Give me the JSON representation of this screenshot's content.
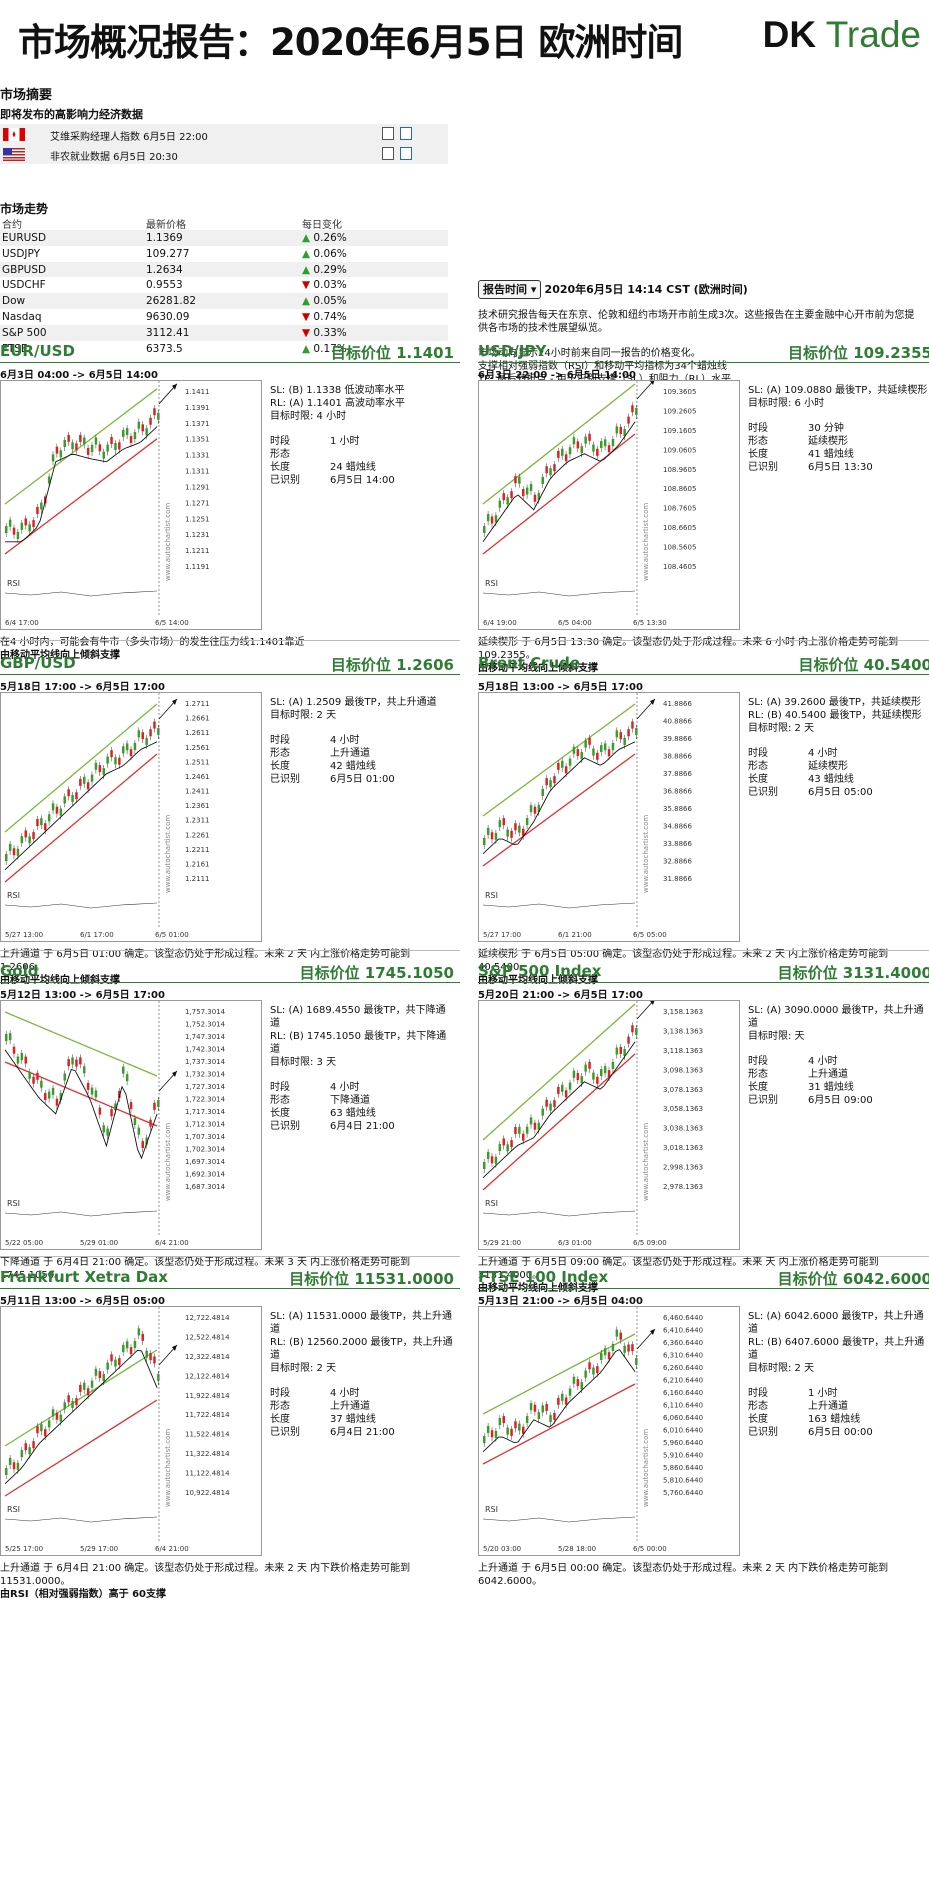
{
  "header": {
    "title": "市场概况报告：2020年6月5日 欧洲时间",
    "logo_left": "DK",
    "logo_right": "Trade"
  },
  "summary": {
    "heading": "市场摘要",
    "events_heading": "即将发布的高影响力经济数据",
    "events": [
      {
        "flag": "canada",
        "text": "艾维采购经理人指数 6月5日 22:00"
      },
      {
        "flag": "usa",
        "text": "非农就业数据 6月5日 20:30"
      }
    ],
    "trend_heading": "市场走势",
    "table_headers": [
      "合约",
      "最新价格",
      "每日变化"
    ],
    "rows": [
      {
        "name": "EURUSD",
        "price": "1.1369",
        "change": "0.26%",
        "dir": "up"
      },
      {
        "name": "USDJPY",
        "price": "109.277",
        "change": "0.06%",
        "dir": "up"
      },
      {
        "name": "GBPUSD",
        "price": "1.2634",
        "change": "0.29%",
        "dir": "up"
      },
      {
        "name": "USDCHF",
        "price": "0.9553",
        "change": "0.03%",
        "dir": "down"
      },
      {
        "name": "Dow",
        "price": "26281.82",
        "change": "0.05%",
        "dir": "up"
      },
      {
        "name": "Nasdaq",
        "price": "9630.09",
        "change": "0.74%",
        "dir": "down"
      },
      {
        "name": "S&P 500",
        "price": "3112.41",
        "change": "0.33%",
        "dir": "down"
      },
      {
        "name": "FTSE",
        "price": "6373.5",
        "change": "0.17%",
        "dir": "up"
      }
    ]
  },
  "report": {
    "button": "报告时间",
    "time": "2020年6月5日 14:14 CST (欧洲时间)",
    "p1": "技术研究报告每天在东京、伦敦和纽约市场开市前生成3次。这些报告在主要金融中心开市前为您提供各市场的技术性展望纵览。",
    "p2": "市场动向显示24小时前来自同一报告的价格变化。",
    "p3": "支撑相对强弱指数（RSI）和移动平均指标为34个蜡烛线",
    "p4": "TP: 最后转折点 - 用于识别支撑（SL）和阻力（RL）水平"
  },
  "labels": {
    "period": "时段",
    "pattern": "形态",
    "length": "长度",
    "identified": "已识别",
    "rsi": "RSI",
    "watermark": "www.autochartist.com"
  },
  "panels": [
    {
      "name": "EUR/USD",
      "target": "目标价位 1.1401",
      "range": "6月3日 04:00 -> 6月5日 14:00",
      "sl": "SL: (B) 1.1338 低波动率水平",
      "rl": "RL: (A) 1.1401 高波动率水平",
      "limit": "目标时限: 4 小时",
      "period": "1 小时",
      "pattern": "",
      "length": "24 蜡烛线",
      "identified": "6月5日 14:00",
      "desc": "在4 小时内，可能会有牛市（多头市场）的发生往压力线1.1401靠近",
      "desc2": "由移动平均线向上倾斜支撑",
      "yticks": [
        "1.1411",
        "1.1391",
        "1.1371",
        "1.1351",
        "1.1331",
        "1.1311",
        "1.1291",
        "1.1271",
        "1.1251",
        "1.1231",
        "1.1211",
        "1.1191"
      ],
      "xticks": [
        "6/4 17:00",
        "6/5 14:00"
      ]
    },
    {
      "name": "USD/JPY",
      "target": "目标价位 109.2355",
      "range": "6月3日 22:00 -> 6月5日 14:00",
      "sl": "SL: (A) 109.0880 最後TP，共延续楔形",
      "rl": "",
      "limit": "目标时限: 6 小时",
      "period": "30 分钟",
      "pattern": "延续楔形",
      "length": "41 蜡烛线",
      "identified": "6月5日 13:30",
      "desc": "延续楔形 于 6月5日 13:30 确定。该型态仍处于形成过程。未来 6 小时 内上涨价格走势可能到 109.2355。",
      "desc2": "由移动平均线向上倾斜支撑",
      "yticks": [
        "109.3605",
        "109.2605",
        "109.1605",
        "109.0605",
        "108.9605",
        "108.8605",
        "108.7605",
        "108.6605",
        "108.5605",
        "108.4605"
      ],
      "xticks": [
        "6/4 19:00",
        "6/5 04:00",
        "6/5 13:30"
      ]
    },
    {
      "name": "GBP/USD",
      "target": "目标价位 1.2606",
      "range": "5月18日 17:00 -> 6月5日 17:00",
      "sl": "SL: (A) 1.2509 最後TP，共上升通道",
      "rl": "",
      "limit": "目标时限: 2 天",
      "period": "4 小时",
      "pattern": "上升通道",
      "length": "42 蜡烛线",
      "identified": "6月5日 01:00",
      "desc": "上升通道 于 6月5日 01:00 确定。该型态仍处于形成过程。未来 2 天 内上涨价格走势可能到 1.2606。",
      "desc2": "由移动平均线向上倾斜支撑",
      "yticks": [
        "1.2711",
        "1.2661",
        "1.2611",
        "1.2561",
        "1.2511",
        "1.2461",
        "1.2411",
        "1.2361",
        "1.2311",
        "1.2261",
        "1.2211",
        "1.2161",
        "1.2111"
      ],
      "xticks": [
        "5/27 13:00",
        "6/1 17:00",
        "6/5 01:00"
      ]
    },
    {
      "name": "Brent Crude",
      "target": "目标价位 40.5400",
      "range": "5月18日 13:00 -> 6月5日 17:00",
      "sl": "SL: (A) 39.2600 最後TP，共延续楔形",
      "rl": "RL: (B) 40.5400 最後TP，共延续楔形",
      "limit": "目标时限: 2 天",
      "period": "4 小时",
      "pattern": "延续楔形",
      "length": "43 蜡烛线",
      "identified": "6月5日 05:00",
      "desc": "延续楔形 于 6月5日 05:00 确定。该型态仍处于形成过程。未来 2 天 内上涨价格走势可能到 40.5400。",
      "desc2": "由移动平均线向上倾斜支撑",
      "yticks": [
        "41.8866",
        "40.8866",
        "39.8866",
        "38.8866",
        "37.8866",
        "36.8866",
        "35.8866",
        "34.8866",
        "33.8866",
        "32.8866",
        "31.8866"
      ],
      "xticks": [
        "5/27 17:00",
        "6/1 21:00",
        "6/5 05:00"
      ]
    },
    {
      "name": "Gold",
      "target": "目标价位 1745.1050",
      "range": "5月12日 13:00 -> 6月5日 17:00",
      "sl": "SL: (A) 1689.4550 最後TP，共下降通道",
      "rl": "RL: (B) 1745.1050 最後TP，共下降通道",
      "limit": "目标时限: 3 天",
      "period": "4 小时",
      "pattern": "下降通道",
      "length": "63 蜡烛线",
      "identified": "6月4日 21:00",
      "desc": "下降通道 于 6月4日 21:00 确定。该型态仍处于形成过程。未来 3 天 内上涨价格走势可能到 1745.1050。",
      "desc2": "",
      "yticks": [
        "1,757.3014",
        "1,752.3014",
        "1,747.3014",
        "1,742.3014",
        "1,737.3014",
        "1,732.3014",
        "1,727.3014",
        "1,722.3014",
        "1,717.3014",
        "1,712.3014",
        "1,707.3014",
        "1,702.3014",
        "1,697.3014",
        "1,692.3014",
        "1,687.3014"
      ],
      "xticks": [
        "5/22 05:00",
        "5/29 01:00",
        "6/4 21:00"
      ]
    },
    {
      "name": "S&P 500 Index",
      "target": "目标价位 3131.4000",
      "range": "5月20日 21:00 -> 6月5日 17:00",
      "sl": "SL: (A) 3090.0000 最後TP，共上升通道",
      "rl": "",
      "limit": "目标时限: 天",
      "period": "4 小时",
      "pattern": "上升通道",
      "length": "31 蜡烛线",
      "identified": "6月5日 09:00",
      "desc": "上升通道 于 6月5日 09:00 确定。该型态仍处于形成过程。未来 天 内上涨价格走势可能到 3131.4000。",
      "desc2": "由移动平均线向上倾斜支撑",
      "yticks": [
        "3,158.1363",
        "3,138.1363",
        "3,118.1363",
        "3,098.1363",
        "3,078.1363",
        "3,058.1363",
        "3,038.1363",
        "3,018.1363",
        "2,998.1363",
        "2,978.1363"
      ],
      "xticks": [
        "5/29 21:00",
        "6/3 01:00",
        "6/5 09:00"
      ]
    },
    {
      "name": "Frankfurt Xetra Dax",
      "target": "目标价位 11531.0000",
      "range": "5月11日 13:00 -> 6月5日 05:00",
      "sl": "SL: (A) 11531.0000 最後TP，共上升通道",
      "rl": "RL: (B) 12560.2000 最後TP，共上升通道",
      "limit": "目标时限: 2 天",
      "period": "4 小时",
      "pattern": "上升通道",
      "length": "37 蜡烛线",
      "identified": "6月4日 21:00",
      "desc": "上升通道 于 6月4日 21:00 确定。该型态仍处于形成过程。未来 2 天 内下跌价格走势可能到 11531.0000。",
      "desc2": "由RSI（相对强弱指数）高于 60支撑",
      "yticks": [
        "12,722.4814",
        "12,522.4814",
        "12,322.4814",
        "12,122.4814",
        "11,922.4814",
        "11,722.4814",
        "11,522.4814",
        "11,322.4814",
        "11,122.4814",
        "10,922.4814"
      ],
      "xticks": [
        "5/25 17:00",
        "5/29 17:00",
        "6/4 21:00"
      ]
    },
    {
      "name": "FTSE 100 Index",
      "target": "目标价位 6042.6000",
      "range": "5月13日 21:00 -> 6月5日 04:00",
      "sl": "SL: (A) 6042.6000 最後TP，共上升通道",
      "rl": "RL: (B) 6407.6000 最後TP，共上升通道",
      "limit": "目标时限: 2 天",
      "period": "1 小时",
      "pattern": "上升通道",
      "length": "163 蜡烛线",
      "identified": "6月5日 00:00",
      "desc": "上升通道 于 6月5日 00:00 确定。该型态仍处于形成过程。未来 2 天 内下跌价格走势可能到 6042.6000。",
      "desc2": "",
      "yticks": [
        "6,460.6440",
        "6,410.6440",
        "6,360.6440",
        "6,310.6440",
        "6,260.6440",
        "6,210.6440",
        "6,160.6440",
        "6,110.6440",
        "6,060.6440",
        "6,010.6440",
        "5,960.6440",
        "5,910.6440",
        "5,860.6440",
        "5,810.6440",
        "5,760.6440"
      ],
      "xticks": [
        "5/20 03:00",
        "5/28 18:00",
        "6/5 00:00"
      ]
    }
  ]
}
